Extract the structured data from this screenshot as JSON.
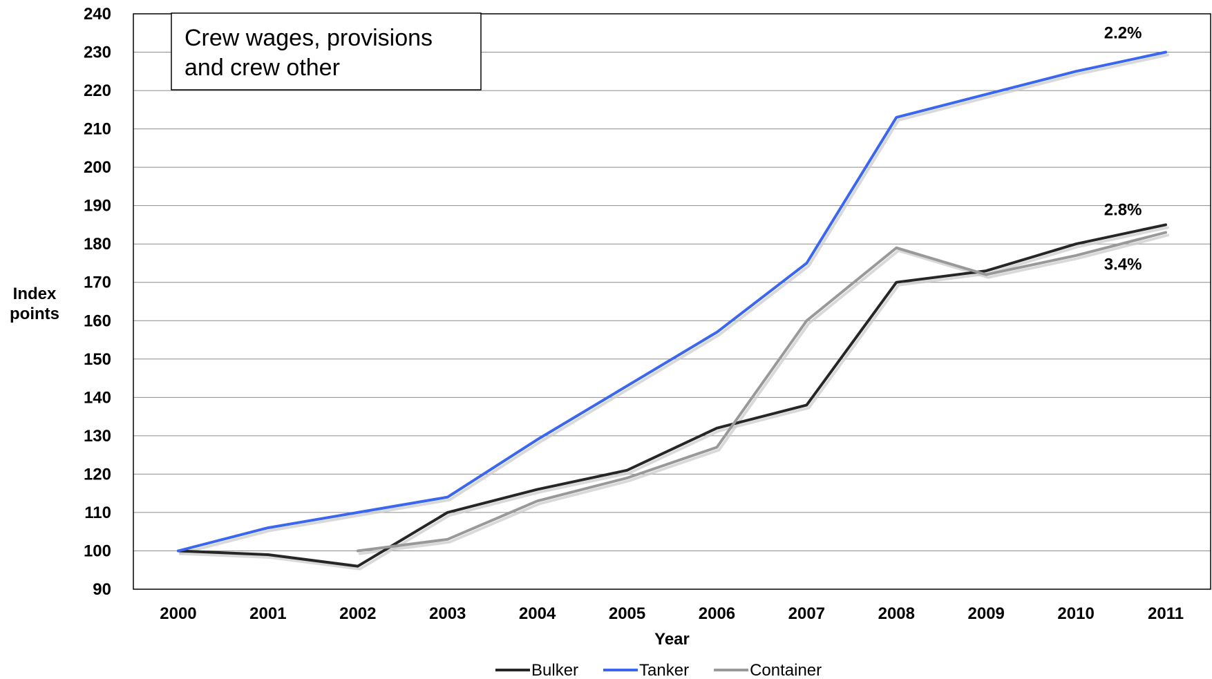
{
  "chart_data": {
    "type": "line",
    "title": "",
    "xlabel": "Year",
    "ylabel": "Index points",
    "ylabel_lines": [
      "Index",
      "points"
    ],
    "ylim": [
      90,
      240
    ],
    "ytick_step": 10,
    "x": [
      "2000",
      "2001",
      "2002",
      "2003",
      "2004",
      "2005",
      "2006",
      "2007",
      "2008",
      "2009",
      "2010",
      "2011"
    ],
    "grid": true,
    "legend_position": "bottom",
    "annotation": {
      "lines": [
        "Crew wages, provisions",
        "and crew other"
      ]
    },
    "series": [
      {
        "name": "Bulker",
        "color": "#262626",
        "values": [
          100,
          99,
          96,
          110,
          116,
          121,
          132,
          138,
          170,
          173,
          180,
          185
        ],
        "end_label": "2.8%"
      },
      {
        "name": "Tanker",
        "color": "#3a66f0",
        "values": [
          100,
          106,
          110,
          114,
          129,
          143,
          157,
          175,
          213,
          219,
          225,
          230
        ],
        "end_label": "2.2%"
      },
      {
        "name": "Container",
        "color": "#999999",
        "values": [
          null,
          null,
          100,
          103,
          113,
          119,
          127,
          160,
          179,
          172,
          177,
          183
        ],
        "end_label": "3.4%"
      }
    ]
  }
}
